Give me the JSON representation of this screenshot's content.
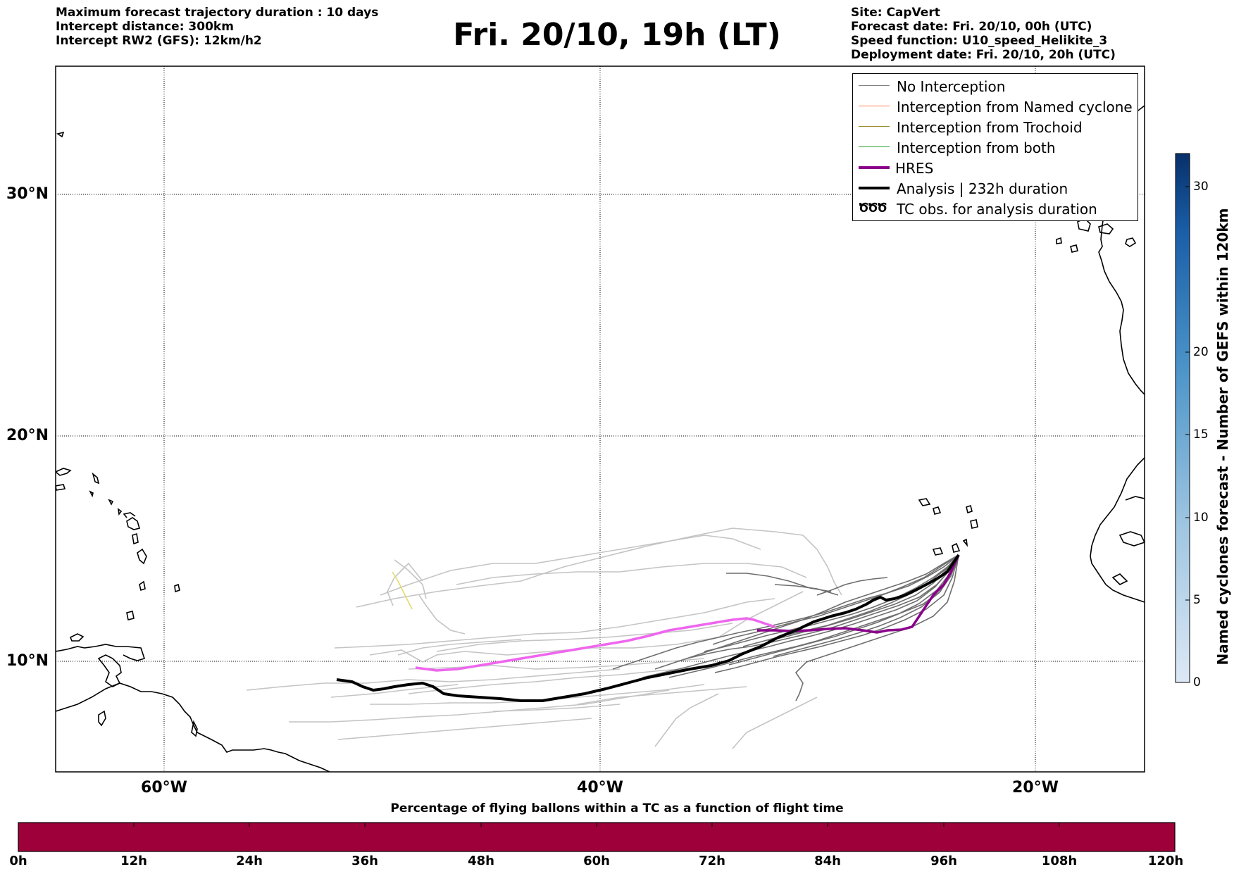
{
  "header": {
    "left": [
      "Maximum forecast trajectory duration : 10 days",
      "Intercept distance: 300km",
      "Intercept RW2 (GFS):  12km/h2"
    ],
    "title": "Fri. 20/10, 19h (LT)",
    "right": [
      "Site: CapVert",
      "Forecast date: Fri. 20/10, 00h (UTC)",
      "Speed function: U10_speed_Helikite_3",
      "Deployment date: Fri. 20/10, 20h (UTC)"
    ]
  },
  "map": {
    "lat_labels": [
      "30°N",
      "20°N",
      "10°N"
    ],
    "lon_labels": [
      "60°W",
      "40°W",
      "20°W"
    ],
    "colors": {
      "no_interception": "#808080",
      "named_cyclone": "#ff7f50",
      "trochoid": "#9a8a2e",
      "both": "#2ca02c",
      "hres": "#8b008b",
      "hres_early": "#ee66ee",
      "analysis": "#000000",
      "yellow_track": "#e8e070"
    }
  },
  "legend": {
    "items": [
      {
        "label": "No Interception",
        "icon": "gray-line"
      },
      {
        "label": "Interception from Named cyclone",
        "icon": "coral-line"
      },
      {
        "label": "Interception from Trochoid",
        "icon": "olive-line"
      },
      {
        "label": "Interception from both",
        "icon": "green-line"
      },
      {
        "label": "HRES",
        "icon": "purple-thick-line"
      },
      {
        "label": "Analysis | 232h duration",
        "icon": "black-thick-line"
      },
      {
        "label": "TC obs. for analysis duration",
        "icon": "cyclone-symbols-icon",
        "symbol": "ԾԾԾ"
      }
    ]
  },
  "colorbar": {
    "title": "Named cyclones forecast - Number of GEFS within 120km",
    "ticks": [
      "30",
      "20",
      "15",
      "10",
      "5",
      "0"
    ],
    "gradient": [
      "#dde8f5",
      "#08306b"
    ]
  },
  "timebar": {
    "title": "Percentage of flying ballons within a TC as a function of flight time",
    "ticks": [
      "0h",
      "12h",
      "24h",
      "36h",
      "48h",
      "60h",
      "72h",
      "84h",
      "96h",
      "108h",
      "120h"
    ],
    "fill_color": "#9e003a"
  }
}
